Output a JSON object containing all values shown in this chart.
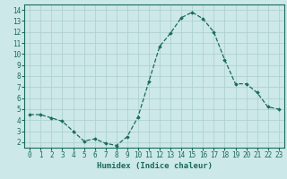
{
  "x": [
    0,
    1,
    2,
    3,
    4,
    5,
    6,
    7,
    8,
    9,
    10,
    11,
    12,
    13,
    14,
    15,
    16,
    17,
    18,
    19,
    20,
    21,
    22,
    23
  ],
  "y": [
    4.5,
    4.5,
    4.2,
    3.9,
    3.0,
    2.1,
    2.3,
    1.9,
    1.7,
    2.5,
    4.3,
    7.5,
    10.7,
    11.9,
    13.3,
    13.8,
    13.2,
    12.0,
    9.5,
    7.3,
    7.3,
    6.5,
    5.2,
    5.0
  ],
  "xlim": [
    -0.5,
    23.5
  ],
  "ylim": [
    1.5,
    14.5
  ],
  "xticks": [
    0,
    1,
    2,
    3,
    4,
    5,
    6,
    7,
    8,
    9,
    10,
    11,
    12,
    13,
    14,
    15,
    16,
    17,
    18,
    19,
    20,
    21,
    22,
    23
  ],
  "yticks": [
    2,
    3,
    4,
    5,
    6,
    7,
    8,
    9,
    10,
    11,
    12,
    13,
    14
  ],
  "xlabel": "Humidex (Indice chaleur)",
  "line_color": "#1a6b5a",
  "marker": "D",
  "marker_size": 1.8,
  "bg_color": "#cce8e8",
  "grid_color": "#aacece",
  "fig_bg": "#cce8e8",
  "tick_fontsize": 5.5,
  "xlabel_fontsize": 6.5,
  "linewidth": 0.9
}
